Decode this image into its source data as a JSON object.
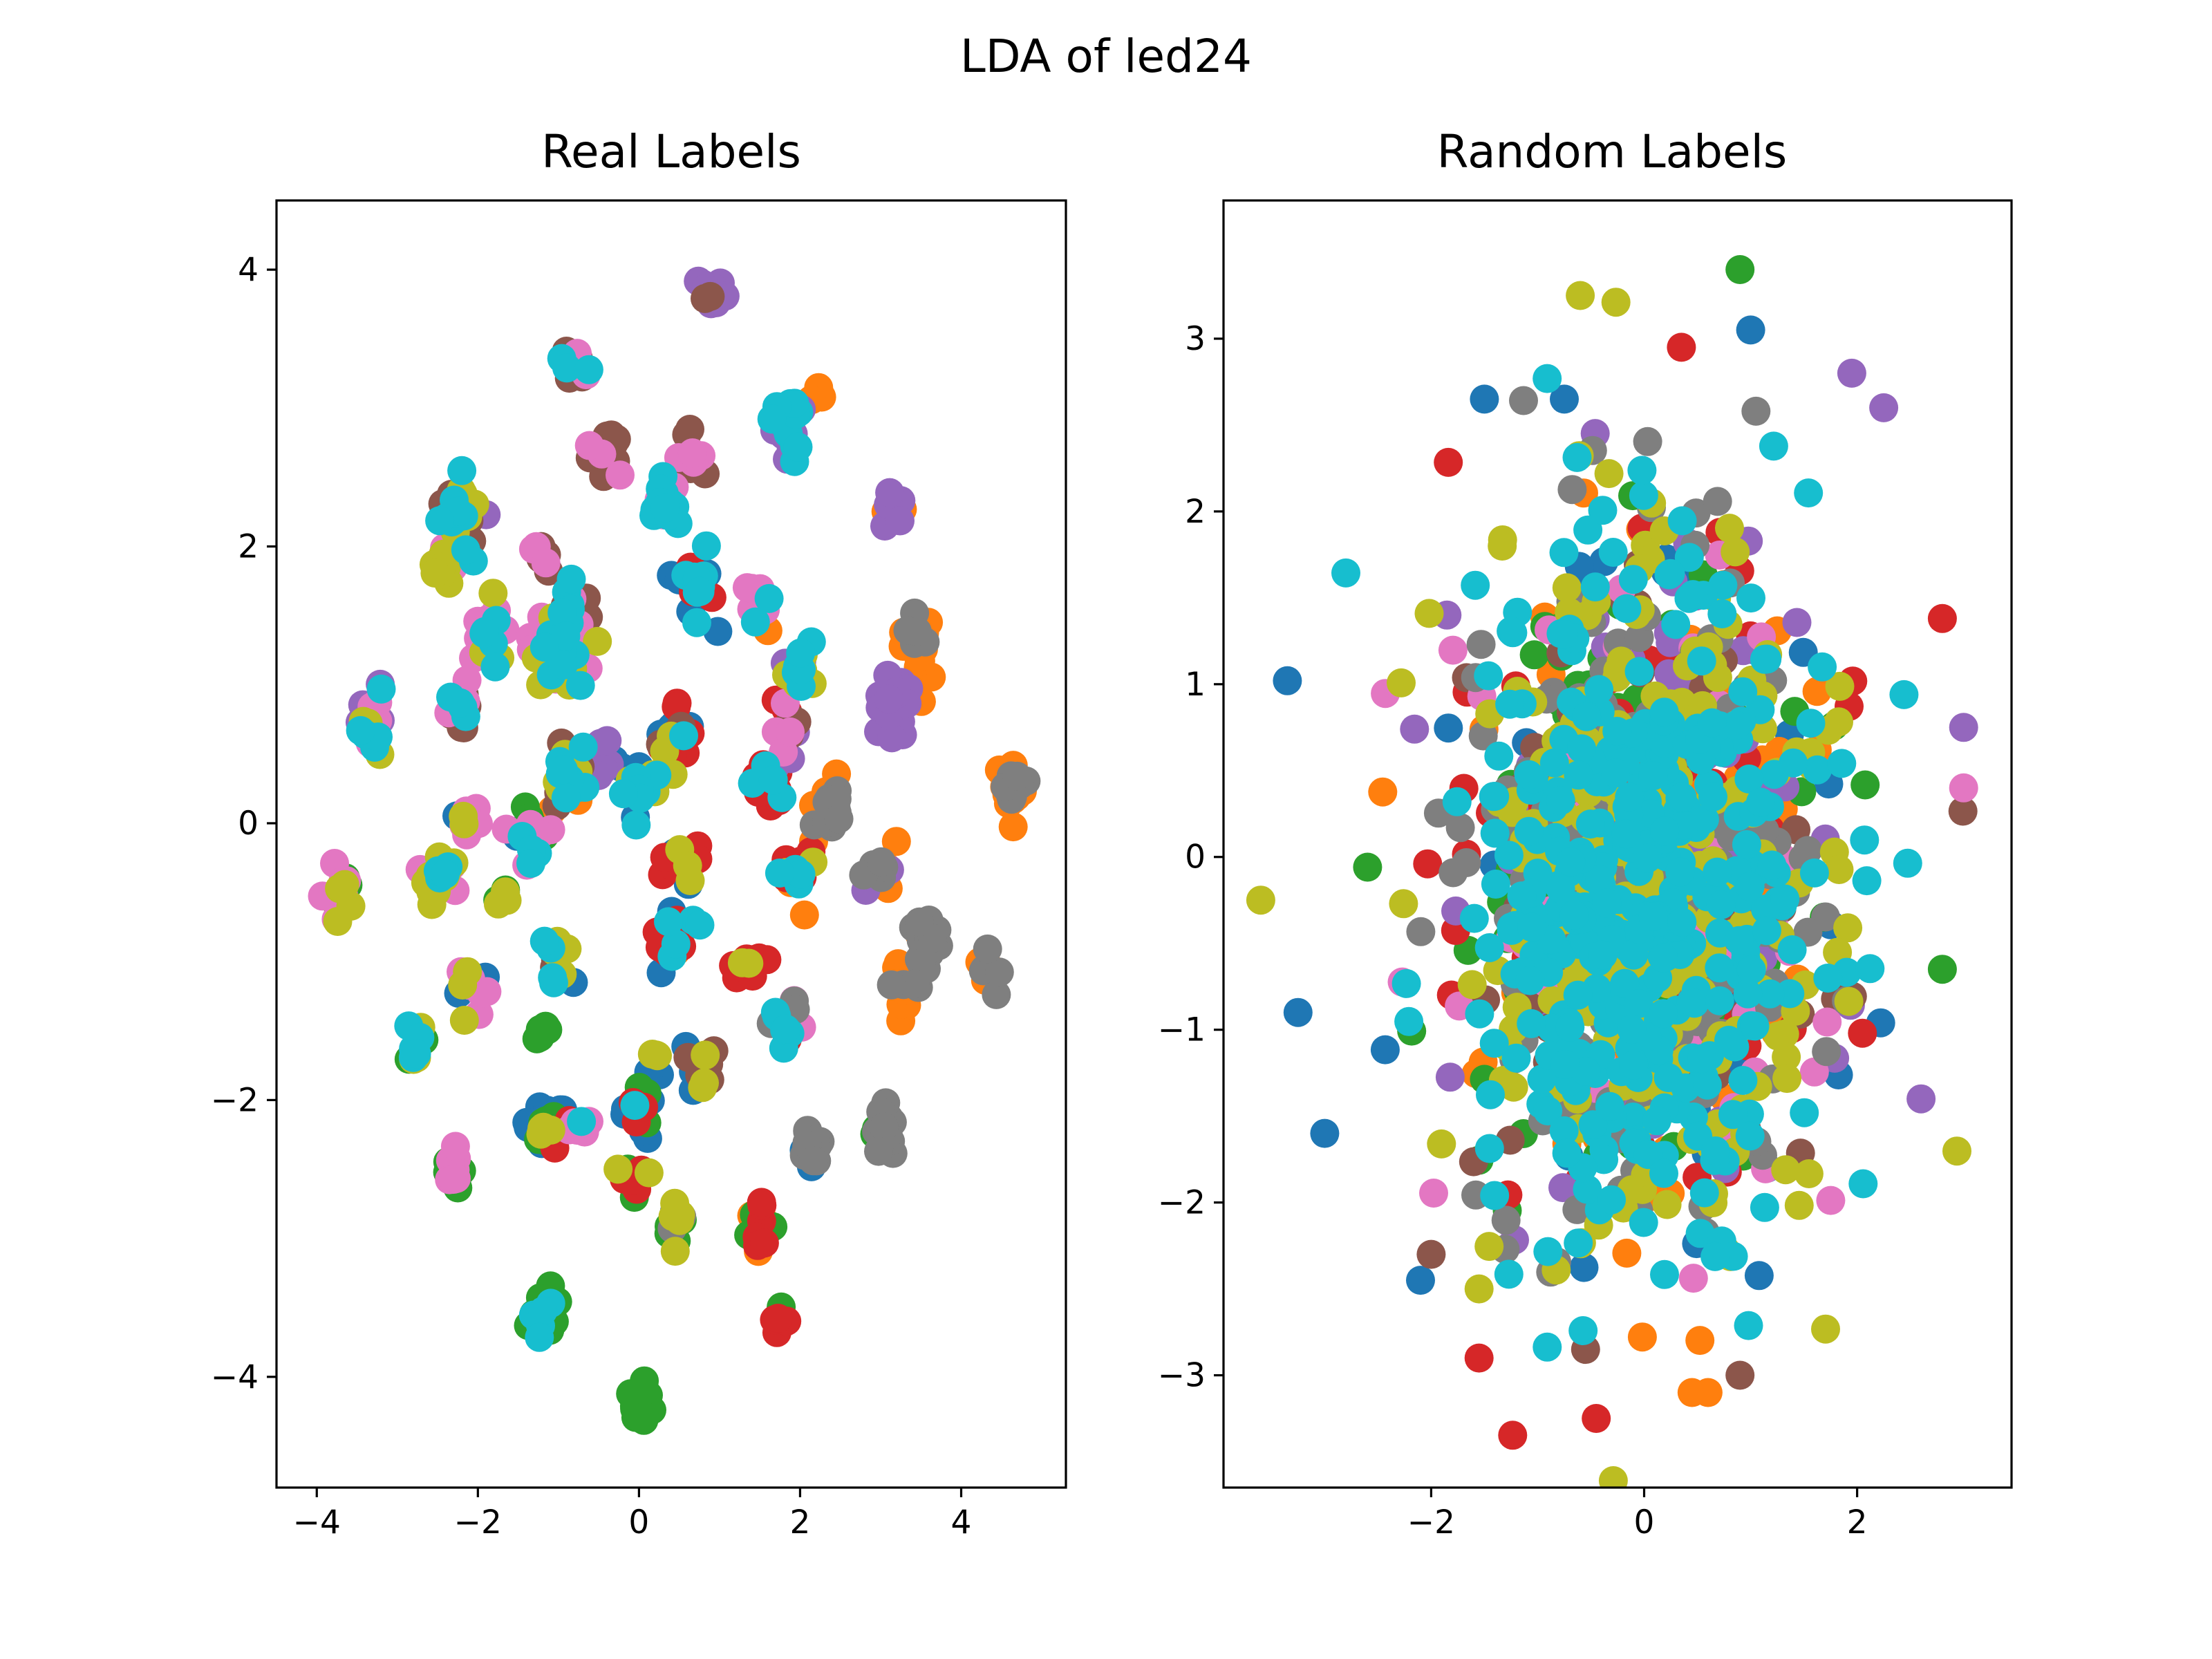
{
  "figure": {
    "title": "LDA of led24"
  },
  "palette": [
    "#1f77b4",
    "#ff7f0e",
    "#2ca02c",
    "#d62728",
    "#9467bd",
    "#8c564b",
    "#e377c2",
    "#7f7f7f",
    "#bcbd22",
    "#17becf"
  ],
  "chart_data": [
    {
      "type": "scatter",
      "title": "Real Labels",
      "xlabel": "",
      "ylabel": "",
      "xlim": [
        -4.5,
        5.3
      ],
      "ylim": [
        -4.8,
        4.5
      ],
      "xticks": [
        -4,
        -2,
        0,
        2,
        4
      ],
      "yticks": [
        -4,
        -2,
        0,
        2,
        4
      ],
      "xtick_labels": [
        "−4",
        "−2",
        "0",
        "2",
        "4"
      ],
      "ytick_labels": [
        "−4",
        "−2",
        "0",
        "2",
        "4"
      ],
      "grid": false,
      "legend": "none",
      "seed": 11,
      "clusters": [
        {
          "cx": 0.9,
          "cy": 3.85,
          "n": 16,
          "spread": 0.07,
          "classes": [
            4,
            4,
            4,
            5
          ]
        },
        {
          "cx": -0.8,
          "cy": 3.3,
          "n": 18,
          "spread": 0.08,
          "classes": [
            5,
            5,
            6,
            9
          ]
        },
        {
          "cx": 1.85,
          "cy": 2.85,
          "n": 22,
          "spread": 0.1,
          "classes": [
            4,
            4,
            9,
            9
          ]
        },
        {
          "cx": 2.25,
          "cy": 3.1,
          "n": 4,
          "spread": 0.06,
          "classes": [
            1
          ]
        },
        {
          "cx": -0.4,
          "cy": 2.7,
          "n": 14,
          "spread": 0.1,
          "classes": [
            5,
            5,
            6
          ]
        },
        {
          "cx": 0.6,
          "cy": 2.65,
          "n": 10,
          "spread": 0.09,
          "classes": [
            5,
            6
          ]
        },
        {
          "cx": 0.3,
          "cy": 2.3,
          "n": 18,
          "spread": 0.09,
          "classes": [
            9,
            9,
            9,
            6
          ]
        },
        {
          "cx": -2.2,
          "cy": 2.2,
          "n": 30,
          "spread": 0.12,
          "classes": [
            9,
            5,
            8,
            4
          ]
        },
        {
          "cx": -2.4,
          "cy": 1.85,
          "n": 12,
          "spread": 0.08,
          "classes": [
            6,
            8
          ]
        },
        {
          "cx": -1.2,
          "cy": 1.95,
          "n": 8,
          "spread": 0.06,
          "classes": [
            5,
            6
          ]
        },
        {
          "cx": 3.1,
          "cy": 2.25,
          "n": 12,
          "spread": 0.08,
          "classes": [
            4,
            4,
            1
          ]
        },
        {
          "cx": 0.7,
          "cy": 1.7,
          "n": 20,
          "spread": 0.12,
          "classes": [
            9,
            9,
            3,
            0
          ]
        },
        {
          "cx": 1.5,
          "cy": 1.6,
          "n": 12,
          "spread": 0.1,
          "classes": [
            9,
            1,
            6
          ]
        },
        {
          "cx": -0.8,
          "cy": 1.55,
          "n": 12,
          "spread": 0.09,
          "classes": [
            9,
            6,
            5
          ]
        },
        {
          "cx": -1.85,
          "cy": 1.35,
          "n": 16,
          "spread": 0.1,
          "classes": [
            6,
            8,
            9
          ]
        },
        {
          "cx": -1.05,
          "cy": 1.2,
          "n": 36,
          "spread": 0.16,
          "classes": [
            9,
            9,
            8,
            6,
            5
          ]
        },
        {
          "cx": 3.45,
          "cy": 1.25,
          "n": 18,
          "spread": 0.09,
          "classes": [
            1,
            1,
            7
          ]
        },
        {
          "cx": 2.0,
          "cy": 1.1,
          "n": 14,
          "spread": 0.09,
          "classes": [
            9,
            8,
            4
          ]
        },
        {
          "cx": 3.2,
          "cy": 0.85,
          "n": 20,
          "spread": 0.12,
          "classes": [
            4,
            4,
            4,
            1
          ]
        },
        {
          "cx": -3.35,
          "cy": 0.75,
          "n": 22,
          "spread": 0.1,
          "classes": [
            8,
            9,
            4,
            6
          ]
        },
        {
          "cx": -2.25,
          "cy": 0.85,
          "n": 14,
          "spread": 0.1,
          "classes": [
            5,
            6,
            9
          ]
        },
        {
          "cx": 0.4,
          "cy": 0.6,
          "n": 22,
          "spread": 0.12,
          "classes": [
            9,
            0,
            8,
            5,
            3
          ]
        },
        {
          "cx": -0.4,
          "cy": 0.5,
          "n": 14,
          "spread": 0.1,
          "classes": [
            0,
            0,
            4
          ]
        },
        {
          "cx": 1.85,
          "cy": 0.7,
          "n": 14,
          "spread": 0.1,
          "classes": [
            3,
            4,
            5,
            6
          ]
        },
        {
          "cx": 1.6,
          "cy": 0.3,
          "n": 16,
          "spread": 0.1,
          "classes": [
            3,
            3,
            9,
            4
          ]
        },
        {
          "cx": -0.9,
          "cy": 0.3,
          "n": 24,
          "spread": 0.14,
          "classes": [
            8,
            9,
            5,
            1
          ]
        },
        {
          "cx": 0.05,
          "cy": 0.25,
          "n": 16,
          "spread": 0.12,
          "classes": [
            8,
            9,
            0
          ]
        },
        {
          "cx": 4.65,
          "cy": 0.25,
          "n": 22,
          "spread": 0.09,
          "classes": [
            1,
            1,
            7,
            7
          ]
        },
        {
          "cx": 2.4,
          "cy": 0.1,
          "n": 16,
          "spread": 0.1,
          "classes": [
            7,
            7,
            1
          ]
        },
        {
          "cx": -2.15,
          "cy": 0.05,
          "n": 12,
          "spread": 0.1,
          "classes": [
            0,
            6,
            8
          ]
        },
        {
          "cx": -1.35,
          "cy": -0.1,
          "n": 20,
          "spread": 0.1,
          "classes": [
            9,
            0,
            6,
            2
          ]
        },
        {
          "cx": 0.55,
          "cy": -0.3,
          "n": 14,
          "spread": 0.1,
          "classes": [
            8,
            0,
            3
          ]
        },
        {
          "cx": 2.0,
          "cy": -0.35,
          "n": 14,
          "spread": 0.1,
          "classes": [
            9,
            8,
            1,
            3
          ]
        },
        {
          "cx": 3.0,
          "cy": -0.35,
          "n": 12,
          "spread": 0.1,
          "classes": [
            7,
            1,
            4
          ]
        },
        {
          "cx": -2.45,
          "cy": -0.35,
          "n": 18,
          "spread": 0.1,
          "classes": [
            9,
            8,
            6
          ]
        },
        {
          "cx": -3.7,
          "cy": -0.5,
          "n": 16,
          "spread": 0.08,
          "classes": [
            6,
            6,
            8,
            2
          ]
        },
        {
          "cx": -1.7,
          "cy": -0.5,
          "n": 6,
          "spread": 0.06,
          "classes": [
            8,
            2
          ]
        },
        {
          "cx": 3.55,
          "cy": -0.85,
          "n": 24,
          "spread": 0.1,
          "classes": [
            7,
            7,
            7,
            1
          ]
        },
        {
          "cx": 0.4,
          "cy": -0.8,
          "n": 26,
          "spread": 0.12,
          "classes": [
            9,
            3,
            0,
            1
          ]
        },
        {
          "cx": -1.0,
          "cy": -0.95,
          "n": 18,
          "spread": 0.1,
          "classes": [
            8,
            9,
            0,
            5
          ]
        },
        {
          "cx": 1.35,
          "cy": -1.0,
          "n": 14,
          "spread": 0.1,
          "classes": [
            3,
            3,
            8
          ]
        },
        {
          "cx": 4.3,
          "cy": -1.05,
          "n": 10,
          "spread": 0.08,
          "classes": [
            1,
            7
          ]
        },
        {
          "cx": 3.3,
          "cy": -1.2,
          "n": 12,
          "spread": 0.1,
          "classes": [
            7,
            1
          ]
        },
        {
          "cx": -2.1,
          "cy": -1.2,
          "n": 14,
          "spread": 0.1,
          "classes": [
            6,
            6,
            8,
            0
          ]
        },
        {
          "cx": 1.8,
          "cy": -1.45,
          "n": 16,
          "spread": 0.09,
          "classes": [
            9,
            7,
            3,
            6
          ]
        },
        {
          "cx": -2.75,
          "cy": -1.6,
          "n": 12,
          "spread": 0.08,
          "classes": [
            8,
            2,
            9
          ]
        },
        {
          "cx": -1.25,
          "cy": -1.5,
          "n": 6,
          "spread": 0.06,
          "classes": [
            2
          ]
        },
        {
          "cx": 0.75,
          "cy": -1.75,
          "n": 14,
          "spread": 0.09,
          "classes": [
            8,
            5,
            0
          ]
        },
        {
          "cx": 0.2,
          "cy": -1.7,
          "n": 6,
          "spread": 0.07,
          "classes": [
            0,
            8
          ]
        },
        {
          "cx": -1.15,
          "cy": -2.2,
          "n": 20,
          "spread": 0.1,
          "classes": [
            8,
            2,
            0
          ]
        },
        {
          "cx": -0.75,
          "cy": -2.2,
          "n": 12,
          "spread": 0.09,
          "classes": [
            9,
            6,
            3
          ]
        },
        {
          "cx": 0.0,
          "cy": -2.1,
          "n": 12,
          "spread": 0.09,
          "classes": [
            3,
            2,
            0,
            9
          ]
        },
        {
          "cx": 2.1,
          "cy": -2.35,
          "n": 18,
          "spread": 0.08,
          "classes": [
            7,
            7,
            0
          ]
        },
        {
          "cx": 3.05,
          "cy": -2.2,
          "n": 16,
          "spread": 0.1,
          "classes": [
            7,
            7,
            2
          ]
        },
        {
          "cx": -2.3,
          "cy": -2.5,
          "n": 14,
          "spread": 0.07,
          "classes": [
            2,
            6
          ]
        },
        {
          "cx": -0.1,
          "cy": -2.55,
          "n": 10,
          "spread": 0.08,
          "classes": [
            3,
            8,
            2
          ]
        },
        {
          "cx": 0.4,
          "cy": -2.9,
          "n": 14,
          "spread": 0.09,
          "classes": [
            8,
            2,
            7
          ]
        },
        {
          "cx": 1.5,
          "cy": -2.9,
          "n": 14,
          "spread": 0.1,
          "classes": [
            3,
            2,
            1
          ]
        },
        {
          "cx": -1.2,
          "cy": -3.55,
          "n": 22,
          "spread": 0.1,
          "classes": [
            2,
            2,
            2,
            9
          ]
        },
        {
          "cx": 1.8,
          "cy": -3.6,
          "n": 6,
          "spread": 0.06,
          "classes": [
            3,
            7,
            2
          ]
        },
        {
          "cx": 0.05,
          "cy": -4.2,
          "n": 16,
          "spread": 0.07,
          "classes": [
            2
          ]
        }
      ]
    },
    {
      "type": "scatter",
      "title": "Random Labels",
      "xlabel": "",
      "ylabel": "",
      "xlim": [
        -3.95,
        3.45
      ],
      "ylim": [
        -3.65,
        3.8
      ],
      "xticks": [
        -2,
        0,
        2
      ],
      "yticks": [
        -3,
        -2,
        -1,
        0,
        1,
        2,
        3
      ],
      "xtick_labels": [
        "−2",
        "0",
        "2"
      ],
      "ytick_labels": [
        "−3",
        "−2",
        "−1",
        "0",
        "1",
        "2",
        "3"
      ],
      "grid": false,
      "legend": "none",
      "seed": 29,
      "cloud": {
        "n": 1500,
        "center": [
          0.0,
          -0.15
        ],
        "sd": [
          0.85,
          0.95
        ],
        "classes": 10,
        "dominant_last": [
          9,
          8,
          7
        ]
      },
      "outliers": [
        {
          "x": 0.9,
          "y": 3.4,
          "c": 2
        },
        {
          "x": -0.6,
          "y": 3.25,
          "c": 8
        },
        {
          "x": 1.0,
          "y": 3.05,
          "c": 0
        },
        {
          "x": 0.35,
          "y": 2.95,
          "c": 3
        },
        {
          "x": -1.5,
          "y": 2.65,
          "c": 0
        },
        {
          "x": -0.75,
          "y": 2.65,
          "c": 0
        },
        {
          "x": 1.95,
          "y": 2.8,
          "c": 4
        },
        {
          "x": 2.25,
          "y": 2.6,
          "c": 4
        },
        {
          "x": -3.35,
          "y": 1.02,
          "c": 0
        },
        {
          "x": 3.0,
          "y": 0.75,
          "c": 4
        },
        {
          "x": 3.0,
          "y": 0.4,
          "c": 6
        },
        {
          "x": 2.8,
          "y": 1.38,
          "c": 3
        },
        {
          "x": -3.6,
          "y": -0.25,
          "c": 8
        },
        {
          "x": -3.25,
          "y": -0.9,
          "c": 0
        },
        {
          "x": -3.0,
          "y": -1.6,
          "c": 0
        },
        {
          "x": 2.6,
          "y": -1.4,
          "c": 4
        },
        {
          "x": 2.8,
          "y": -0.65,
          "c": 2
        },
        {
          "x": -1.55,
          "y": -2.9,
          "c": 3
        },
        {
          "x": -0.45,
          "y": -3.25,
          "c": 3
        },
        {
          "x": 0.45,
          "y": -3.1,
          "c": 1
        },
        {
          "x": 0.6,
          "y": -3.1,
          "c": 1
        },
        {
          "x": 0.9,
          "y": -3.0,
          "c": 5
        },
        {
          "x": -2.1,
          "y": -2.45,
          "c": 0
        },
        {
          "x": -2.0,
          "y": -2.3,
          "c": 5
        },
        {
          "x": 1.05,
          "y": 2.58,
          "c": 7
        },
        {
          "x": -0.55,
          "y": -2.85,
          "c": 5
        },
        {
          "x": -1.55,
          "y": -2.5,
          "c": 8
        }
      ]
    }
  ]
}
